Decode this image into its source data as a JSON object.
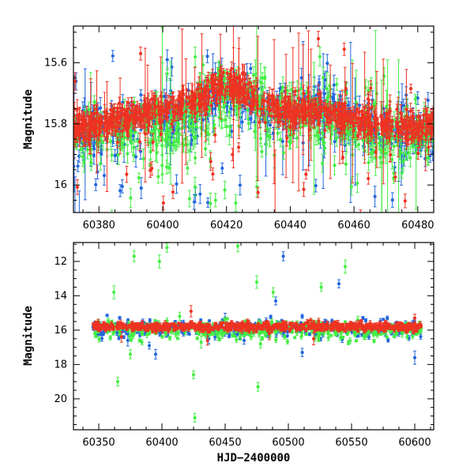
{
  "chart_data": [
    {
      "type": "scatter",
      "panel": "top",
      "title": "",
      "xlabel": "",
      "ylabel": "Magnitude",
      "xlim": [
        60372,
        60485
      ],
      "ylim": [
        16.09,
        15.48
      ],
      "y_inverted": true,
      "xticks": [
        60380,
        60400,
        60420,
        60440,
        60460,
        60480
      ],
      "yticks": [
        15.6,
        15.8,
        16.0
      ],
      "ytick_labels": [
        "15.6",
        "15.8",
        "16"
      ],
      "error_bars": true,
      "series_colors": [
        "#2266dd",
        "#44ee44",
        "#ee3322"
      ],
      "series": [
        {
          "color": "#2266dd",
          "trend": {
            "x": [
              60372,
              60385,
              60400,
              60413,
              60418,
              60425,
              60430,
              60440,
              60452,
              60460,
              60470,
              60485
            ],
            "y": [
              15.83,
              15.81,
              15.78,
              15.75,
              15.69,
              15.7,
              15.74,
              15.77,
              15.76,
              15.8,
              15.82,
              15.83
            ]
          }
        },
        {
          "color": "#44ee44",
          "trend": {
            "x": [
              60372,
              60385,
              60400,
              60413,
              60418,
              60425,
              60430,
              60440,
              60452,
              60460,
              60470,
              60485
            ],
            "y": [
              15.84,
              15.82,
              15.8,
              15.76,
              15.71,
              15.72,
              15.75,
              15.78,
              15.78,
              15.81,
              15.83,
              15.84
            ]
          }
        },
        {
          "color": "#ee3322",
          "trend": {
            "x": [
              60372,
              60385,
              60400,
              60413,
              60418,
              60425,
              60430,
              60440,
              60452,
              60460,
              60470,
              60485
            ],
            "y": [
              15.81,
              15.79,
              15.75,
              15.72,
              15.67,
              15.69,
              15.73,
              15.76,
              15.76,
              15.79,
              15.8,
              15.82
            ]
          }
        }
      ]
    },
    {
      "type": "scatter",
      "panel": "bottom",
      "title": "",
      "xlabel": "HJD−2400000",
      "ylabel": "Magnitude",
      "xlim": [
        60330,
        60615
      ],
      "ylim": [
        21.8,
        10.9
      ],
      "y_inverted": true,
      "xticks": [
        60350,
        60400,
        60450,
        60500,
        60550,
        60600
      ],
      "yticks": [
        12,
        14,
        16,
        18,
        20
      ],
      "ytick_labels": [
        "12",
        "14",
        "16",
        "18",
        "20"
      ],
      "error_bars": true,
      "series": [
        {
          "color": "#2266dd",
          "baseline": 15.9,
          "outliers": {
            "x": [
              60373,
              60390,
              60395,
              60437,
              60450,
              60465,
              60490,
              60496,
              60511,
              60540,
              60600
            ],
            "y": [
              16.6,
              16.9,
              17.4,
              16.5,
              15.3,
              16.6,
              14.3,
              11.7,
              17.3,
              13.3,
              17.6
            ]
          }
        },
        {
          "color": "#44ee44",
          "baseline": 16.0,
          "outliers": {
            "x": [
              60362,
              60365,
              60375,
              60378,
              60398,
              60404,
              60414,
              60425,
              60426,
              60431,
              60460,
              60475,
              60476,
              60478,
              60488,
              60526,
              60545,
              60555,
              60590
            ],
            "y": [
              13.8,
              19.0,
              17.4,
              11.7,
              12.0,
              11.2,
              15.2,
              18.6,
              21.1,
              16.7,
              11.1,
              13.2,
              19.3,
              16.8,
              13.8,
              13.5,
              12.3,
              15.4,
              16.1
            ]
          }
        },
        {
          "color": "#ee3322",
          "baseline": 15.8,
          "outliers": {
            "x": [
              60368,
              60423,
              60436,
              60485,
              60520,
              60600
            ],
            "y": [
              16.4,
              14.9,
              16.6,
              16.2,
              16.5,
              15.3
            ]
          }
        }
      ]
    }
  ]
}
